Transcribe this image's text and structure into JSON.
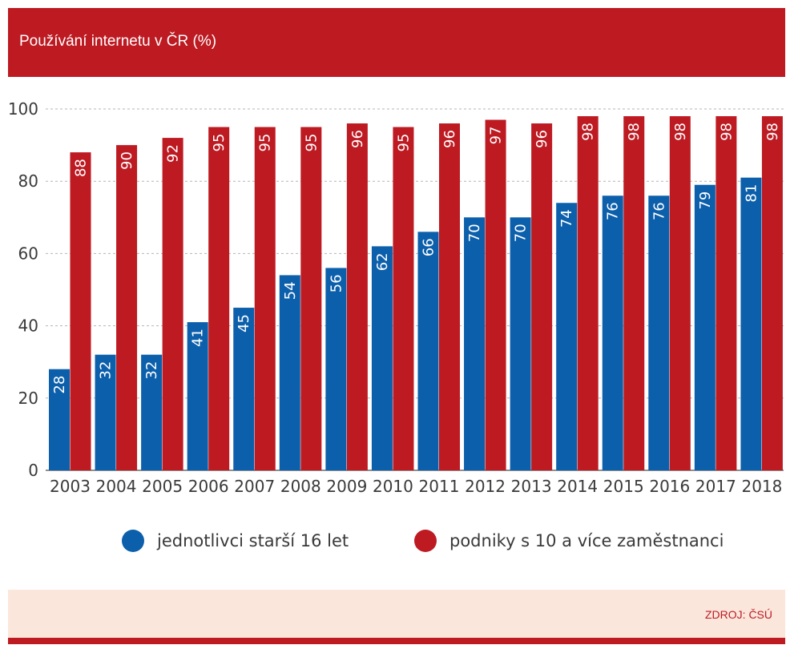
{
  "header": {
    "title": "Používání internetu v ČR (%)"
  },
  "footer": {
    "source": "ZDROJ: ČSÚ"
  },
  "colors": {
    "header": "#bd1a22",
    "individuals": "#0c5fab",
    "companies": "#bd1a22",
    "footer": "#fbe6dc"
  },
  "chart_data": {
    "type": "bar",
    "title": "Používání internetu v ČR (%)",
    "xlabel": "",
    "ylabel": "",
    "ylim": [
      0,
      100
    ],
    "yticks": [
      0,
      20,
      40,
      60,
      80,
      100
    ],
    "grid": true,
    "legend_position": "bottom",
    "categories": [
      "2003",
      "2004",
      "2005",
      "2006",
      "2007",
      "2008",
      "2009",
      "2010",
      "2011",
      "2012",
      "2013",
      "2014",
      "2015",
      "2016",
      "2017",
      "2018"
    ],
    "series": [
      {
        "name": "jednotlivci starší 16 let",
        "color": "#0c5fab",
        "values": [
          28,
          32,
          32,
          41,
          45,
          54,
          56,
          62,
          66,
          70,
          70,
          74,
          76,
          76,
          79,
          81
        ]
      },
      {
        "name": "podniky s 10 a více zaměstnanci",
        "color": "#bd1a22",
        "values": [
          88,
          90,
          92,
          95,
          95,
          95,
          96,
          95,
          96,
          97,
          96,
          98,
          98,
          98,
          98,
          98
        ]
      }
    ]
  }
}
